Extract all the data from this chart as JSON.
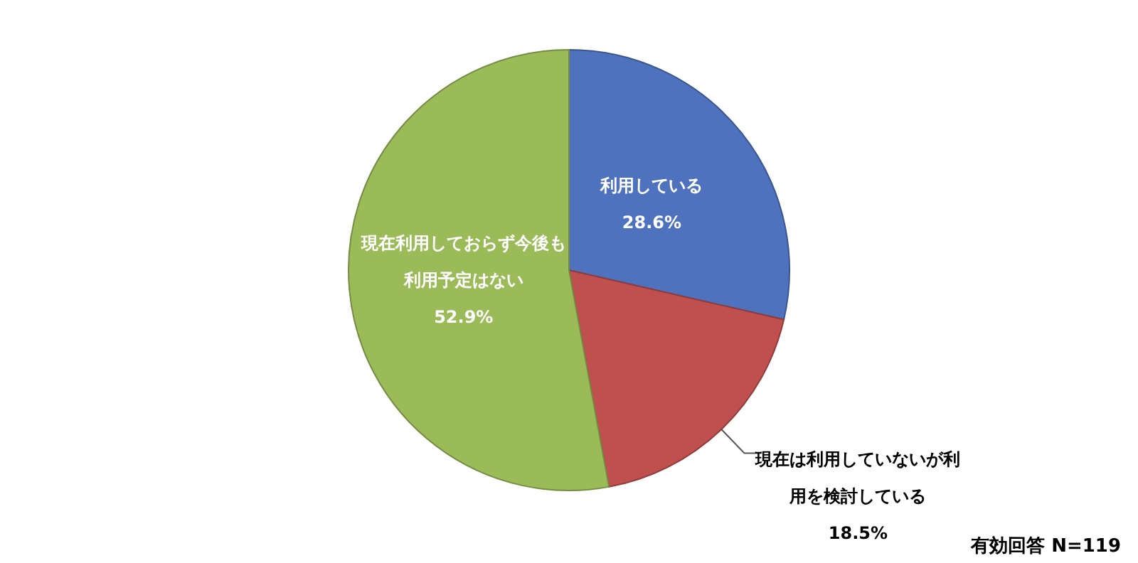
{
  "chart_data": {
    "type": "pie",
    "categories": [
      "利用している",
      "現在は利用していないが利用を検討している",
      "現在利用しておらず今後も利用予定はない"
    ],
    "values": [
      28.6,
      18.5,
      52.9
    ],
    "value_labels": [
      "28.6%",
      "18.5%",
      "52.9%"
    ],
    "colors": [
      "#4f72be",
      "#c0504d",
      "#9bbb59"
    ],
    "annotations": [
      "有効回答 N=119"
    ]
  }
}
